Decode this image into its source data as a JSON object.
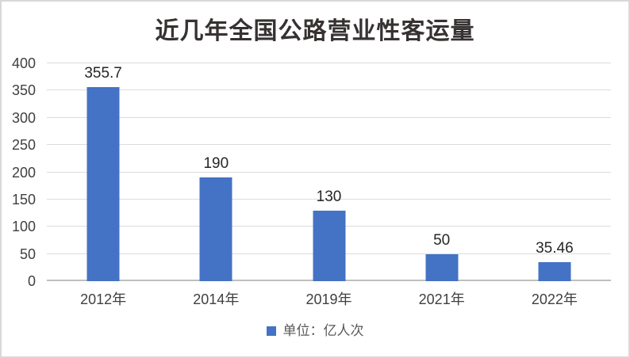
{
  "title": "近几年全国公路营业性客运量",
  "legend": {
    "label": "单位：亿人次",
    "swatch_color": "#4472C4"
  },
  "colors": {
    "bar": "#4472C4",
    "gridline": "#DCDCDC",
    "axis_line": "#BFBFBF",
    "frame_border": "#D8D8D8",
    "title_text": "#373232",
    "axis_text": "#404040",
    "data_label_text": "#262626",
    "legend_text": "#595959",
    "background": "#FFFFFF"
  },
  "chart_data": {
    "type": "bar",
    "title": "近几年全国公路营业性客运量",
    "categories": [
      "2012年",
      "2014年",
      "2019年",
      "2021年",
      "2022年"
    ],
    "values": [
      355.7,
      190,
      130,
      50,
      35.46
    ],
    "data_labels": [
      "355.7",
      "190",
      "130",
      "50",
      "35.46"
    ],
    "xlabel": "",
    "ylabel": "",
    "ylim": [
      0,
      400
    ],
    "ytick_step": 50,
    "yticks": [
      0,
      50,
      100,
      150,
      200,
      250,
      300,
      350,
      400
    ],
    "grid": true,
    "legend_entries": [
      "单位：亿人次"
    ],
    "legend_position": "bottom",
    "bar_color": "#4472C4"
  }
}
